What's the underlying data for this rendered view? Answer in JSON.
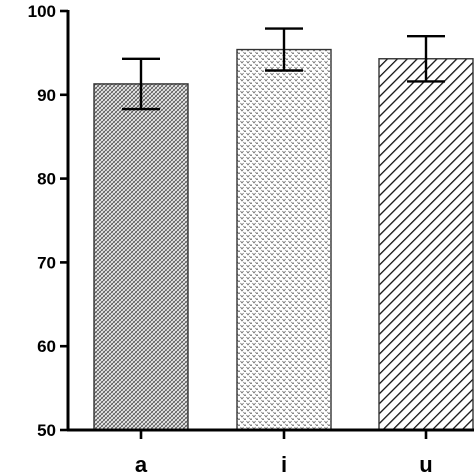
{
  "chart_data": {
    "type": "bar",
    "categories": [
      "a",
      "i",
      "u"
    ],
    "values": [
      91.3,
      95.4,
      94.3
    ],
    "errors": [
      3.0,
      2.5,
      2.7
    ],
    "ylim": [
      50,
      100
    ],
    "yticks": [
      50,
      60,
      70,
      80,
      90,
      100
    ],
    "title": "",
    "xlabel": "",
    "ylabel": "",
    "grid": false,
    "bar_patterns": [
      "crosshatch",
      "dots",
      "diagonal"
    ],
    "colors": {
      "axis": "#000000",
      "bar_edge": "#333333",
      "bar_fill": "#ffffff"
    }
  }
}
